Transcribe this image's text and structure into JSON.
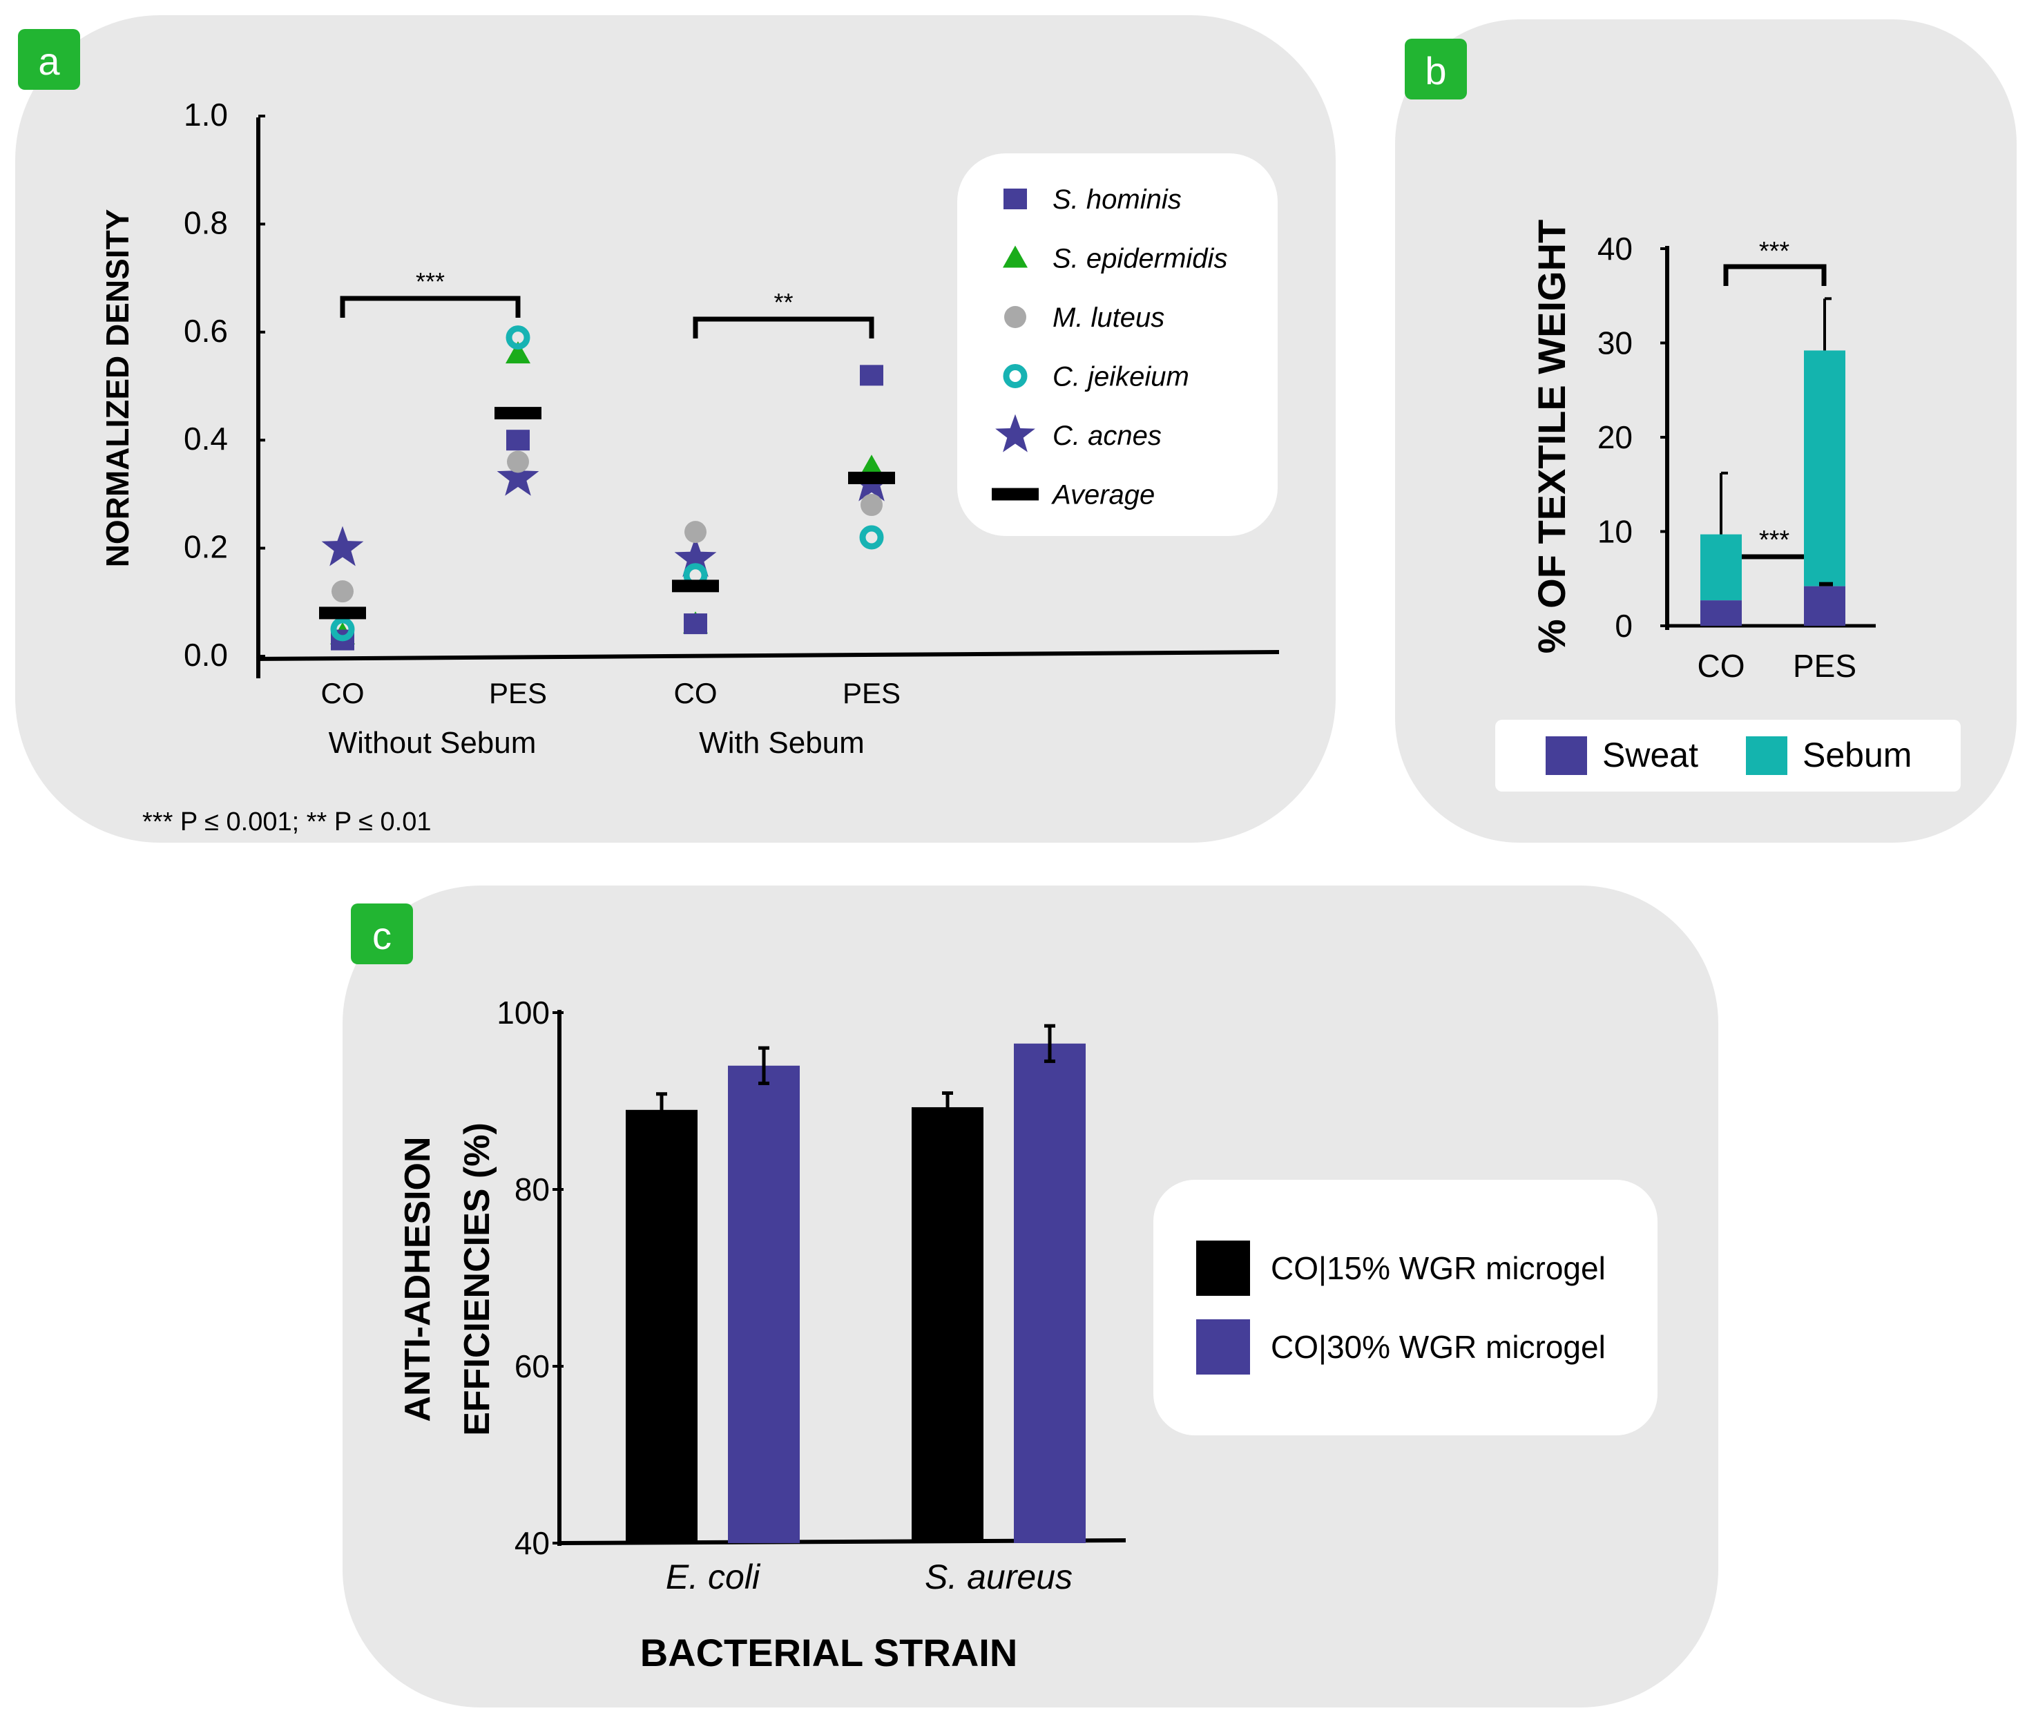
{
  "colors": {
    "panel_bg": "#e8e8e8",
    "badge": "#22b532",
    "s_hominis": "#453e98",
    "s_epidermidis": "#1aac1a",
    "m_luteus": "#a9a9a9",
    "c_jeikeium": "#17b3b3",
    "c_acnes": "#453e98",
    "average": "#000000",
    "sweat": "#453e98",
    "sebum": "#14b4ae",
    "co15": "#000000",
    "co30": "#453e98"
  },
  "chart_data": [
    {
      "id": "a",
      "badge": "a",
      "type": "scatter",
      "ylabel": "NORMALIZED DENSITY",
      "ylim": [
        0,
        1.0
      ],
      "yticks": [
        "0.0",
        "0.2",
        "0.4",
        "0.6",
        "0.8",
        "1.0"
      ],
      "categories": [
        "CO",
        "PES",
        "CO",
        "PES"
      ],
      "groups": [
        "Without Sebum",
        "With Sebum"
      ],
      "series": [
        {
          "name": "S. hominis",
          "marker": "square",
          "color_key": "s_hominis",
          "values": [
            0.03,
            0.4,
            0.06,
            0.52
          ]
        },
        {
          "name": "S. epidermidis",
          "marker": "triangle",
          "color_key": "s_epidermidis",
          "values": [
            0.04,
            0.56,
            0.06,
            0.35
          ]
        },
        {
          "name": "M. luteus",
          "marker": "circle",
          "color_key": "m_luteus",
          "values": [
            0.12,
            0.36,
            0.23,
            0.28
          ]
        },
        {
          "name": "C. jeikeium",
          "marker": "ring",
          "color_key": "c_jeikeium",
          "values": [
            0.05,
            0.59,
            0.15,
            0.22
          ]
        },
        {
          "name": "C. acnes",
          "marker": "star",
          "color_key": "c_acnes",
          "values": [
            0.2,
            0.33,
            0.18,
            0.32
          ]
        },
        {
          "name": "Average",
          "marker": "dash",
          "color_key": "average",
          "values": [
            0.08,
            0.45,
            0.13,
            0.33
          ]
        }
      ],
      "brackets": [
        {
          "from": 0,
          "to": 1,
          "level": 0.65,
          "label": "***"
        },
        {
          "from": 2,
          "to": 3,
          "level": 0.62,
          "label": "**"
        }
      ],
      "footnote": "*** P ≤ 0.001; ** P ≤ 0.01"
    },
    {
      "id": "b",
      "badge": "b",
      "type": "bar",
      "stacked": true,
      "ylabel": "% OF TEXTILE WEIGHT",
      "ylim": [
        0,
        40
      ],
      "yticks": [
        "0",
        "10",
        "20",
        "30",
        "40"
      ],
      "categories": [
        "CO",
        "PES"
      ],
      "series": [
        {
          "name": "Sweat",
          "color_key": "sweat",
          "values": [
            2.7,
            4.2
          ],
          "errors": [
            0,
            0.4
          ]
        },
        {
          "name": "Sebum",
          "color_key": "sebum",
          "values": [
            7.0,
            25.0
          ],
          "errors": [
            6.5,
            5.5
          ]
        }
      ],
      "brackets": [
        {
          "label": "***",
          "position": "top"
        },
        {
          "label": "***",
          "position": "between"
        }
      ]
    },
    {
      "id": "c",
      "badge": "c",
      "type": "bar",
      "ylabel_line1": "ANTI-ADHESION",
      "ylabel_line2": "EFFICIENCIES (%)",
      "xlabel": "BACTERIAL STRAIN",
      "ylim": [
        40,
        100
      ],
      "yticks": [
        "40",
        "60",
        "80",
        "100"
      ],
      "categories": [
        "E. coli",
        "S. aureus"
      ],
      "series": [
        {
          "name": "CO|15% WGR microgel",
          "color_key": "co15",
          "values": [
            89,
            89.3
          ],
          "errors": [
            1.8,
            1.6
          ]
        },
        {
          "name": "CO|30% WGR microgel",
          "color_key": "co30",
          "values": [
            94,
            96.5
          ],
          "errors": [
            2,
            2
          ]
        }
      ]
    }
  ]
}
